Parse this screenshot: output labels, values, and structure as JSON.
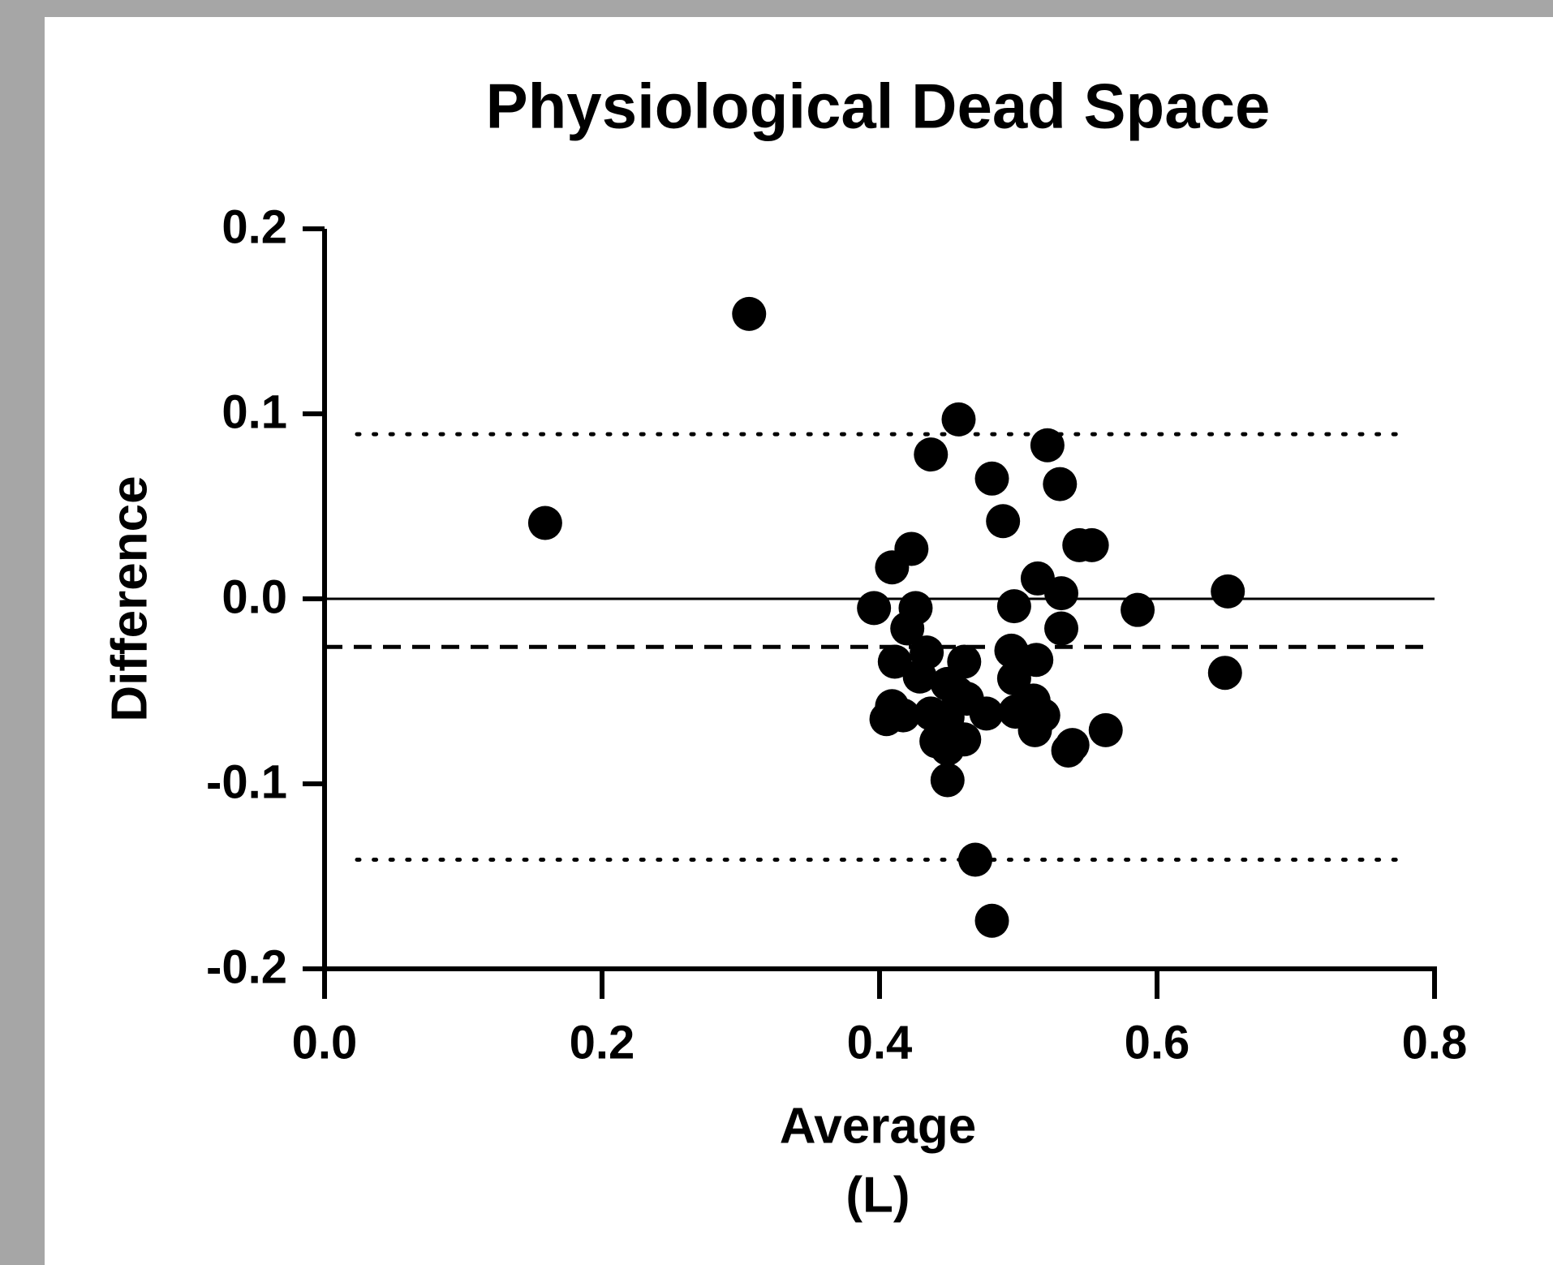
{
  "chart_data": {
    "type": "scatter",
    "title": "Physiological Dead Space",
    "xlabel": [
      "Average",
      "(L)"
    ],
    "ylabel": "Difference",
    "xlim": [
      0,
      0.8
    ],
    "ylim": [
      -0.2,
      0.2
    ],
    "xticks": [
      {
        "value": 0,
        "label": "0.0"
      },
      0.2,
      0.4,
      0.6,
      0.8
    ],
    "yticks": [
      -0.2,
      -0.1,
      {
        "value": 0,
        "label": "0.0"
      },
      0.1,
      0.2
    ],
    "color": "#000000",
    "reference_lines": [
      {
        "value": 0,
        "style": "solid"
      },
      {
        "value": -0.026,
        "style": "dashed"
      },
      {
        "value": 0.089,
        "style": "dotted"
      },
      {
        "value": -0.141,
        "style": "dotted"
      }
    ],
    "x": [
      0.306,
      0.159,
      0.457,
      0.437,
      0.521,
      0.53,
      0.481,
      0.489,
      0.544,
      0.553,
      0.423,
      0.409,
      0.514,
      0.531,
      0.651,
      0.396,
      0.426,
      0.497,
      0.586,
      0.42,
      0.531,
      0.434,
      0.495,
      0.411,
      0.461,
      0.513,
      0.429,
      0.497,
      0.449,
      0.649,
      0.456,
      0.463,
      0.511,
      0.409,
      0.437,
      0.498,
      0.477,
      0.518,
      0.417,
      0.405,
      0.449,
      0.563,
      0.512,
      0.441,
      0.461,
      0.539,
      0.536,
      0.449,
      0.449,
      0.469,
      0.481
    ],
    "values": [
      0.154,
      0.041,
      0.097,
      0.078,
      0.083,
      0.062,
      0.065,
      0.042,
      0.029,
      0.029,
      0.027,
      0.017,
      0.011,
      0.003,
      0.004,
      -0.005,
      -0.005,
      -0.004,
      -0.006,
      -0.016,
      -0.016,
      -0.029,
      -0.028,
      -0.034,
      -0.034,
      -0.033,
      -0.042,
      -0.043,
      -0.046,
      -0.04,
      -0.051,
      -0.054,
      -0.055,
      -0.058,
      -0.062,
      -0.061,
      -0.062,
      -0.063,
      -0.063,
      -0.065,
      -0.064,
      -0.071,
      -0.071,
      -0.077,
      -0.076,
      -0.079,
      -0.082,
      -0.081,
      -0.098,
      -0.141,
      -0.174
    ]
  }
}
